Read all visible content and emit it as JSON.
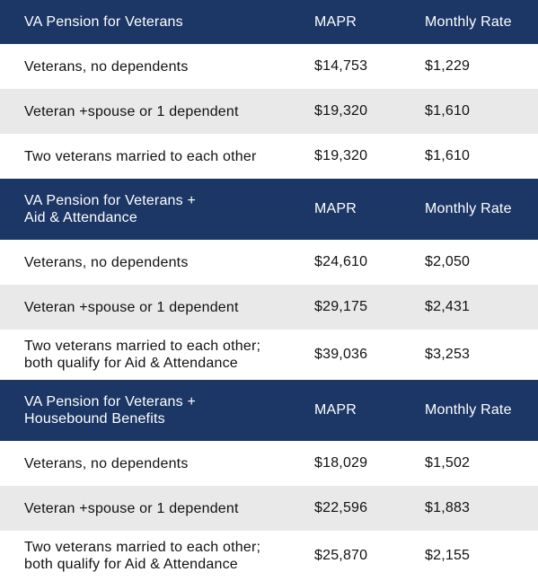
{
  "columns": {
    "mapr": "MAPR",
    "monthly_rate": "Monthly Rate"
  },
  "sections": [
    {
      "title_lines": [
        "VA Pension for Veterans"
      ],
      "rows": [
        {
          "label_lines": [
            "Veterans, no dependents"
          ],
          "mapr": "$14,753",
          "rate": "$1,229"
        },
        {
          "label_lines": [
            "Veteran +spouse or 1 dependent"
          ],
          "mapr": "$19,320",
          "rate": "$1,610"
        },
        {
          "label_lines": [
            "Two veterans married to each other"
          ],
          "mapr": "$19,320",
          "rate": "$1,610"
        }
      ]
    },
    {
      "title_lines": [
        "VA Pension for Veterans +",
        "Aid & Attendance"
      ],
      "rows": [
        {
          "label_lines": [
            "Veterans, no dependents"
          ],
          "mapr": "$24,610",
          "rate": "$2,050"
        },
        {
          "label_lines": [
            "Veteran +spouse or 1 dependent"
          ],
          "mapr": "$29,175",
          "rate": "$2,431"
        },
        {
          "label_lines": [
            "Two veterans married to each other;",
            "both qualify for Aid & Attendance"
          ],
          "mapr": "$39,036",
          "rate": "$3,253"
        }
      ]
    },
    {
      "title_lines": [
        "VA Pension for Veterans +",
        "Housebound Benefits"
      ],
      "rows": [
        {
          "label_lines": [
            "Veterans, no dependents"
          ],
          "mapr": "$18,029",
          "rate": "$1,502"
        },
        {
          "label_lines": [
            "Veteran +spouse or 1 dependent"
          ],
          "mapr": "$22,596",
          "rate": "$1,883"
        },
        {
          "label_lines": [
            "Two veterans married to each other;",
            "both qualify for Aid & Attendance"
          ],
          "mapr": "$25,870",
          "rate": "$2,155"
        }
      ]
    }
  ],
  "colors": {
    "header_bg": "#1c3766",
    "header_text": "#ffffff",
    "alt_row_bg": "#e9e9ea",
    "body_text": "#111111"
  }
}
